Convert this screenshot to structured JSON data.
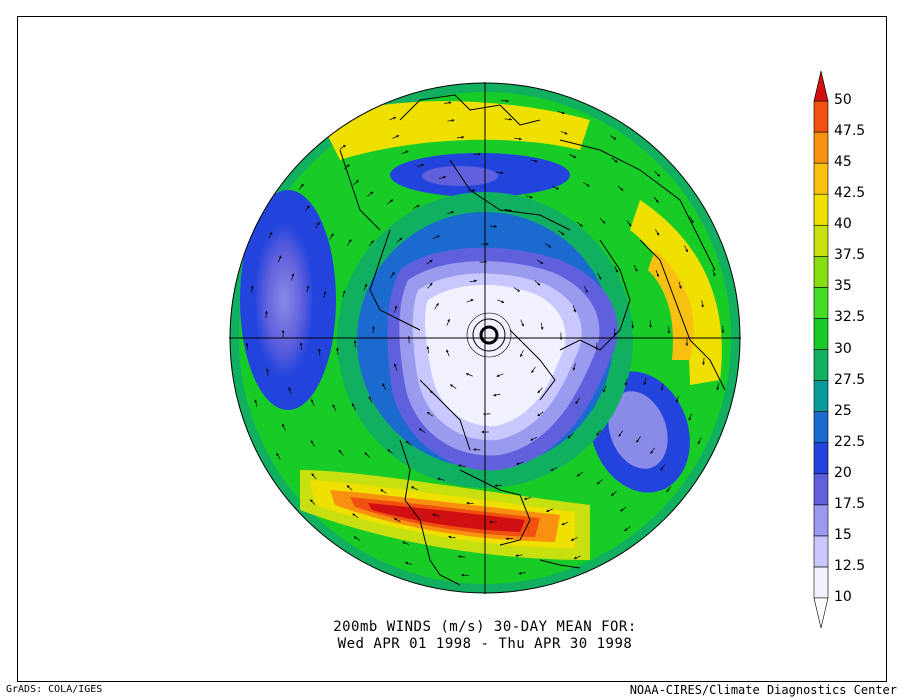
{
  "caption": {
    "line1": "200mb WINDS (m/s)   30-DAY MEAN FOR:",
    "line2": "Wed APR 01 1998 - Thu APR 30 1998"
  },
  "footer": {
    "left": "GrADS: COLA/IGES",
    "right": "NOAA-CIRES/Climate Diagnostics Center"
  },
  "colorbar": {
    "levels": [
      "10",
      "12.5",
      "15",
      "17.5",
      "20",
      "22.5",
      "25",
      "27.5",
      "30",
      "32.5",
      "35",
      "37.5",
      "40",
      "42.5",
      "45",
      "47.5",
      "50"
    ],
    "colors": [
      "#f2f2ff",
      "#c8c8ff",
      "#9a9aee",
      "#6060dd",
      "#2244dd",
      "#1a6ad0",
      "#0a9a9a",
      "#10b060",
      "#18cc28",
      "#44dd22",
      "#88dd11",
      "#c8e010",
      "#f0e000",
      "#f8c010",
      "#f89010",
      "#f05010",
      "#d01010"
    ]
  },
  "map": {
    "projection": "north-polar-stereographic",
    "field": "200mb wind speed with wind vectors"
  }
}
